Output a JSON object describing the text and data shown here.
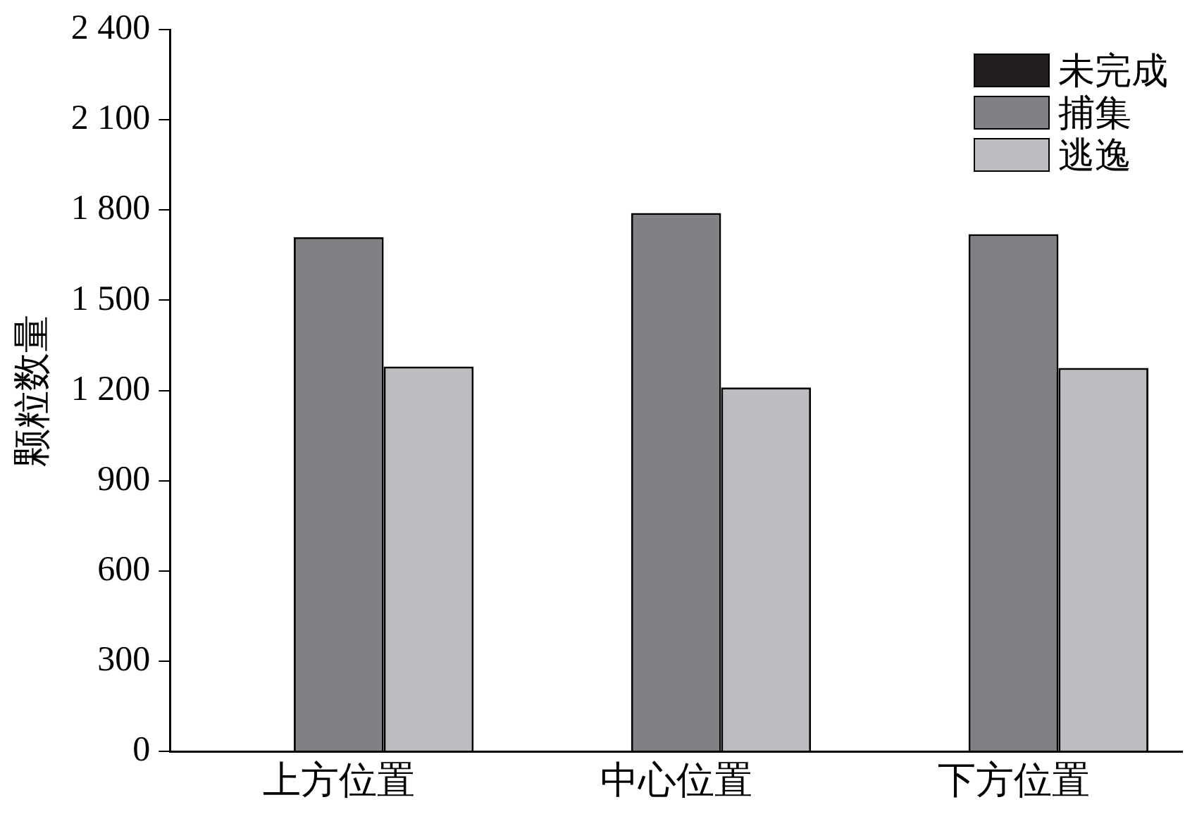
{
  "chart_data": {
    "type": "bar",
    "ylabel": "颗粒数量",
    "categories": [
      "上方位置",
      "中心位置",
      "下方位置"
    ],
    "series": [
      {
        "name": "未完成",
        "color": "#231f20",
        "values": [
          0,
          0,
          0
        ]
      },
      {
        "name": "捕集",
        "color": "#808184",
        "values": [
          1710,
          1790,
          1720
        ]
      },
      {
        "name": "逃逸",
        "color": "#bcbdc0",
        "values": [
          1280,
          1210,
          1275
        ]
      }
    ],
    "ylim": [
      0,
      2400
    ],
    "yticks": [
      0,
      300,
      600,
      900,
      {
        "value": 1200,
        "label": "1 200"
      },
      {
        "value": 1500,
        "label": "1 500"
      },
      {
        "value": 1800,
        "label": "1 800"
      },
      {
        "value": 2100,
        "label": "2 100"
      },
      {
        "value": 2400,
        "label": "2 400"
      }
    ],
    "grid": false,
    "legend": "top right"
  }
}
